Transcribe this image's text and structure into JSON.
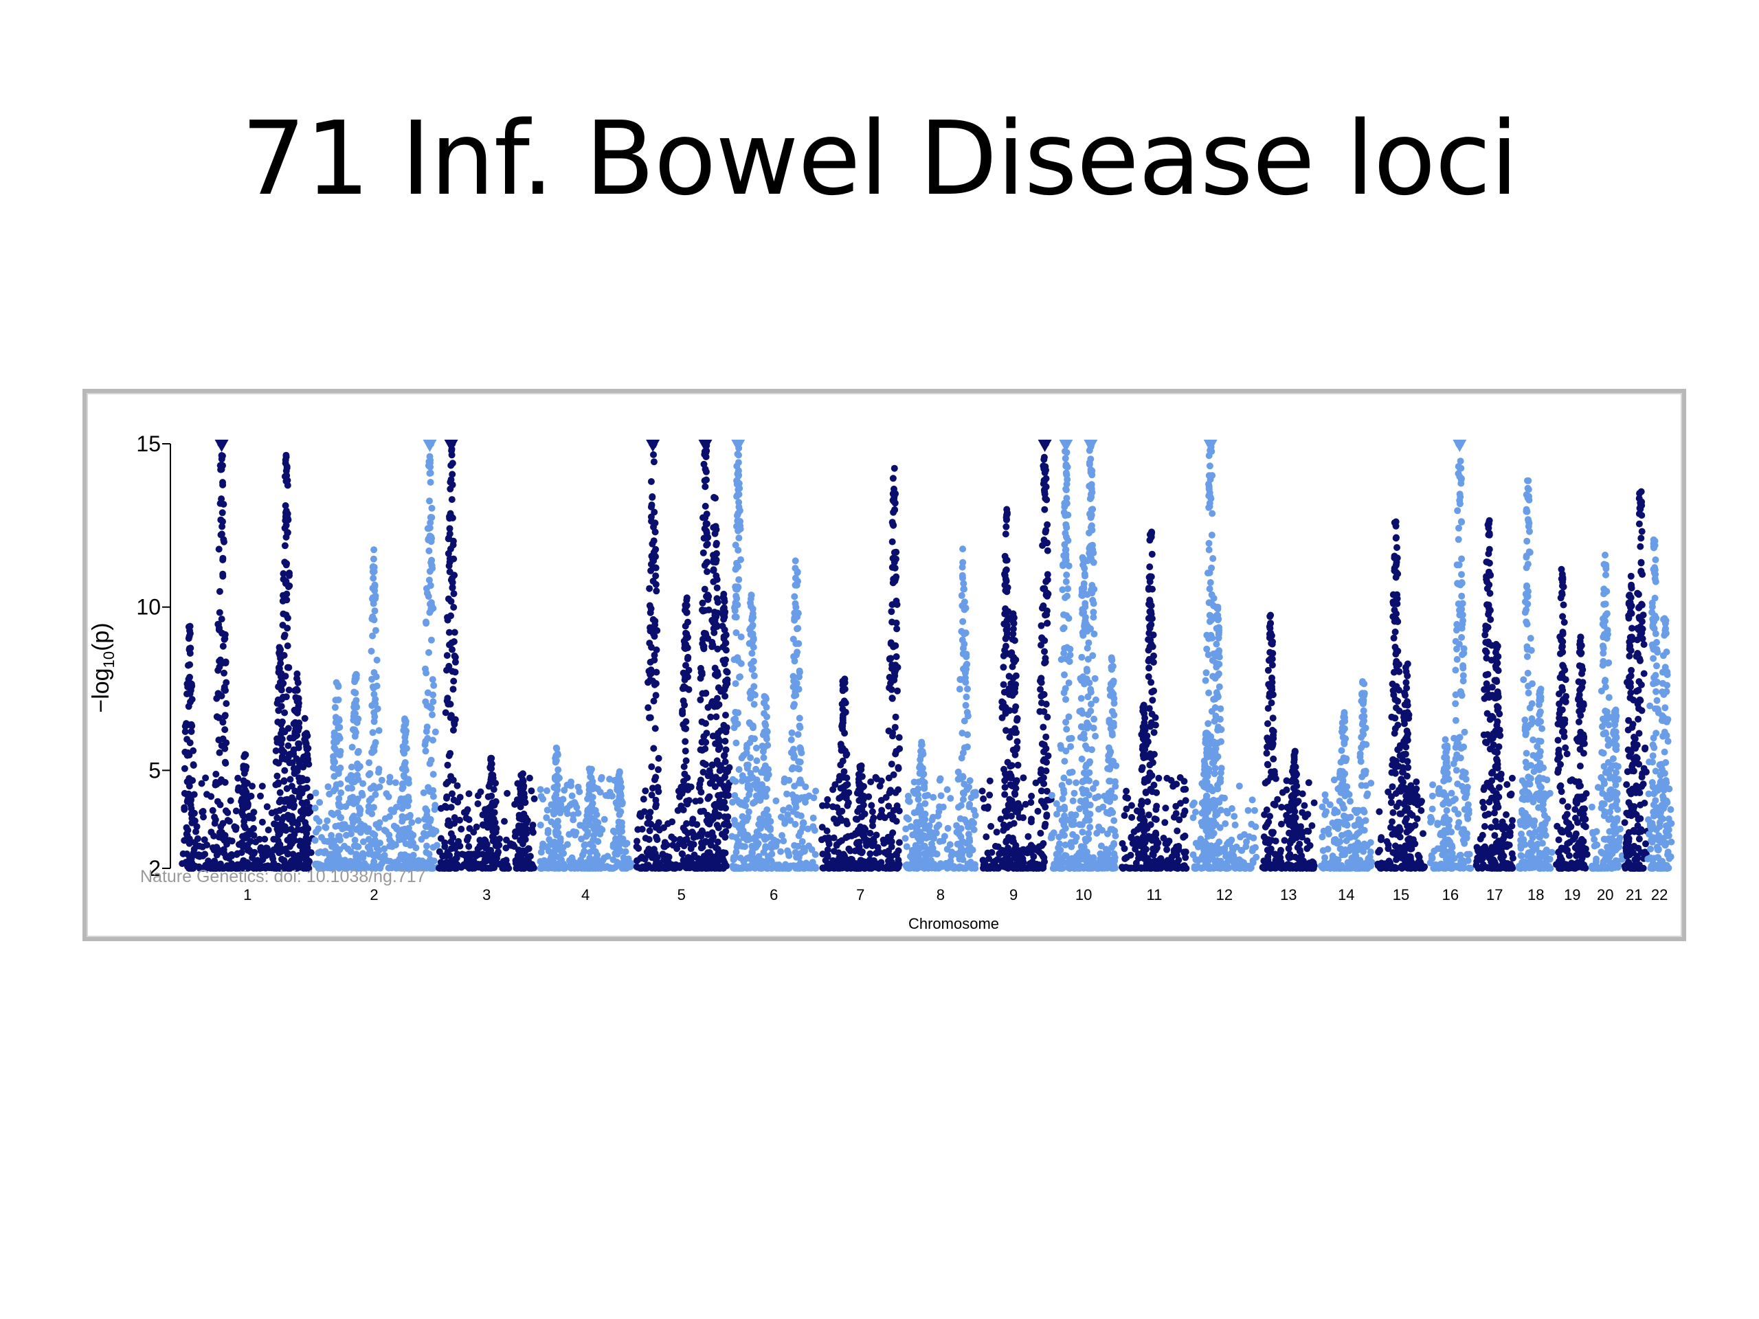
{
  "slide": {
    "title": "71 Inf. Bowel Disease loci"
  },
  "chart_data": {
    "type": "scatter",
    "title": "",
    "xlabel": "Chromosome",
    "ylabel_main": "−log",
    "ylabel_sub": "10",
    "ylabel_tail": "(p)",
    "ylim": [
      2,
      15
    ],
    "yticks": [
      2,
      5,
      10,
      15
    ],
    "source_note": "Nature Genetics: doi: 10.1038/ng.717",
    "colors": {
      "dark": "#0a0f6e",
      "light": "#6a9de8"
    },
    "chromosomes": [
      {
        "label": "1",
        "width": 11,
        "color": "dark",
        "peaks": [
          [
            0.05,
            9.6
          ],
          [
            0.3,
            15.3
          ],
          [
            0.48,
            5.5
          ],
          [
            0.75,
            8.8
          ],
          [
            0.8,
            14.8
          ],
          [
            0.88,
            8.3
          ],
          [
            0.95,
            6.6
          ]
        ]
      },
      {
        "label": "2",
        "width": 10.5,
        "color": "light",
        "peaks": [
          [
            0.2,
            7.8
          ],
          [
            0.35,
            8.1
          ],
          [
            0.5,
            11.8
          ],
          [
            0.75,
            6.6
          ],
          [
            0.95,
            15.0
          ]
        ]
      },
      {
        "label": "3",
        "width": 8.6,
        "color": "dark",
        "peaks": [
          [
            0.15,
            15.5
          ],
          [
            0.55,
            5.4
          ],
          [
            0.85,
            5.0
          ]
        ]
      },
      {
        "label": "4",
        "width": 8.2,
        "color": "light",
        "peaks": [
          [
            0.2,
            5.7
          ],
          [
            0.55,
            5.2
          ],
          [
            0.85,
            5.0
          ]
        ]
      },
      {
        "label": "5",
        "width": 8.1,
        "color": "dark",
        "peaks": [
          [
            0.2,
            15.5
          ],
          [
            0.55,
            10.3
          ],
          [
            0.75,
            15.5
          ],
          [
            0.85,
            13.5
          ],
          [
            0.95,
            10.5
          ]
        ]
      },
      {
        "label": "6",
        "width": 7.6,
        "color": "light",
        "peaks": [
          [
            0.1,
            15.0
          ],
          [
            0.25,
            10.4
          ],
          [
            0.4,
            7.3
          ],
          [
            0.75,
            11.5
          ]
        ]
      },
      {
        "label": "7",
        "width": 7.1,
        "color": "dark",
        "peaks": [
          [
            0.3,
            7.8
          ],
          [
            0.5,
            5.3
          ],
          [
            0.9,
            14.4
          ]
        ]
      },
      {
        "label": "8",
        "width": 6.5,
        "color": "light",
        "peaks": [
          [
            0.25,
            5.9
          ],
          [
            0.8,
            11.8
          ]
        ]
      },
      {
        "label": "9",
        "width": 5.9,
        "color": "dark",
        "peaks": [
          [
            0.4,
            13.0
          ],
          [
            0.5,
            9.8
          ],
          [
            0.95,
            15.5
          ]
        ]
      },
      {
        "label": "10",
        "width": 6.0,
        "color": "light",
        "peaks": [
          [
            0.25,
            15.3
          ],
          [
            0.5,
            11.8
          ],
          [
            0.6,
            15.2
          ],
          [
            0.9,
            8.5
          ]
        ]
      },
      {
        "label": "11",
        "width": 6.0,
        "color": "dark",
        "peaks": [
          [
            0.45,
            12.3
          ],
          [
            0.35,
            7.0
          ]
        ]
      },
      {
        "label": "12",
        "width": 5.9,
        "color": "light",
        "peaks": [
          [
            0.25,
            6.5
          ],
          [
            0.3,
            15.3
          ],
          [
            0.4,
            10.0
          ]
        ]
      },
      {
        "label": "13",
        "width": 5.0,
        "color": "dark",
        "peaks": [
          [
            0.2,
            9.8
          ],
          [
            0.6,
            5.6
          ]
        ]
      },
      {
        "label": "14",
        "width": 4.8,
        "color": "light",
        "peaks": [
          [
            0.45,
            6.8
          ],
          [
            0.8,
            7.8
          ]
        ]
      },
      {
        "label": "15",
        "width": 4.5,
        "color": "dark",
        "peaks": [
          [
            0.4,
            12.8
          ],
          [
            0.6,
            8.7
          ]
        ]
      },
      {
        "label": "16",
        "width": 3.9,
        "color": "light",
        "peaks": [
          [
            0.7,
            15.4
          ],
          [
            0.4,
            6.0
          ]
        ]
      },
      {
        "label": "17",
        "width": 3.6,
        "color": "dark",
        "peaks": [
          [
            0.35,
            12.8
          ],
          [
            0.55,
            8.9
          ]
        ]
      },
      {
        "label": "18",
        "width": 3.4,
        "color": "light",
        "peaks": [
          [
            0.3,
            13.9
          ],
          [
            0.6,
            7.5
          ]
        ]
      },
      {
        "label": "19",
        "width": 2.8,
        "color": "dark",
        "peaks": [
          [
            0.2,
            11.2
          ],
          [
            0.75,
            9.2
          ]
        ]
      },
      {
        "label": "20",
        "width": 2.8,
        "color": "light",
        "peaks": [
          [
            0.5,
            11.6
          ],
          [
            0.8,
            6.9
          ]
        ]
      },
      {
        "label": "21",
        "width": 2.1,
        "color": "dark",
        "peaks": [
          [
            0.35,
            11.0
          ],
          [
            0.75,
            13.7
          ]
        ]
      },
      {
        "label": "22",
        "width": 2.2,
        "color": "light",
        "peaks": [
          [
            0.3,
            12.2
          ],
          [
            0.7,
            9.8
          ]
        ]
      }
    ]
  }
}
